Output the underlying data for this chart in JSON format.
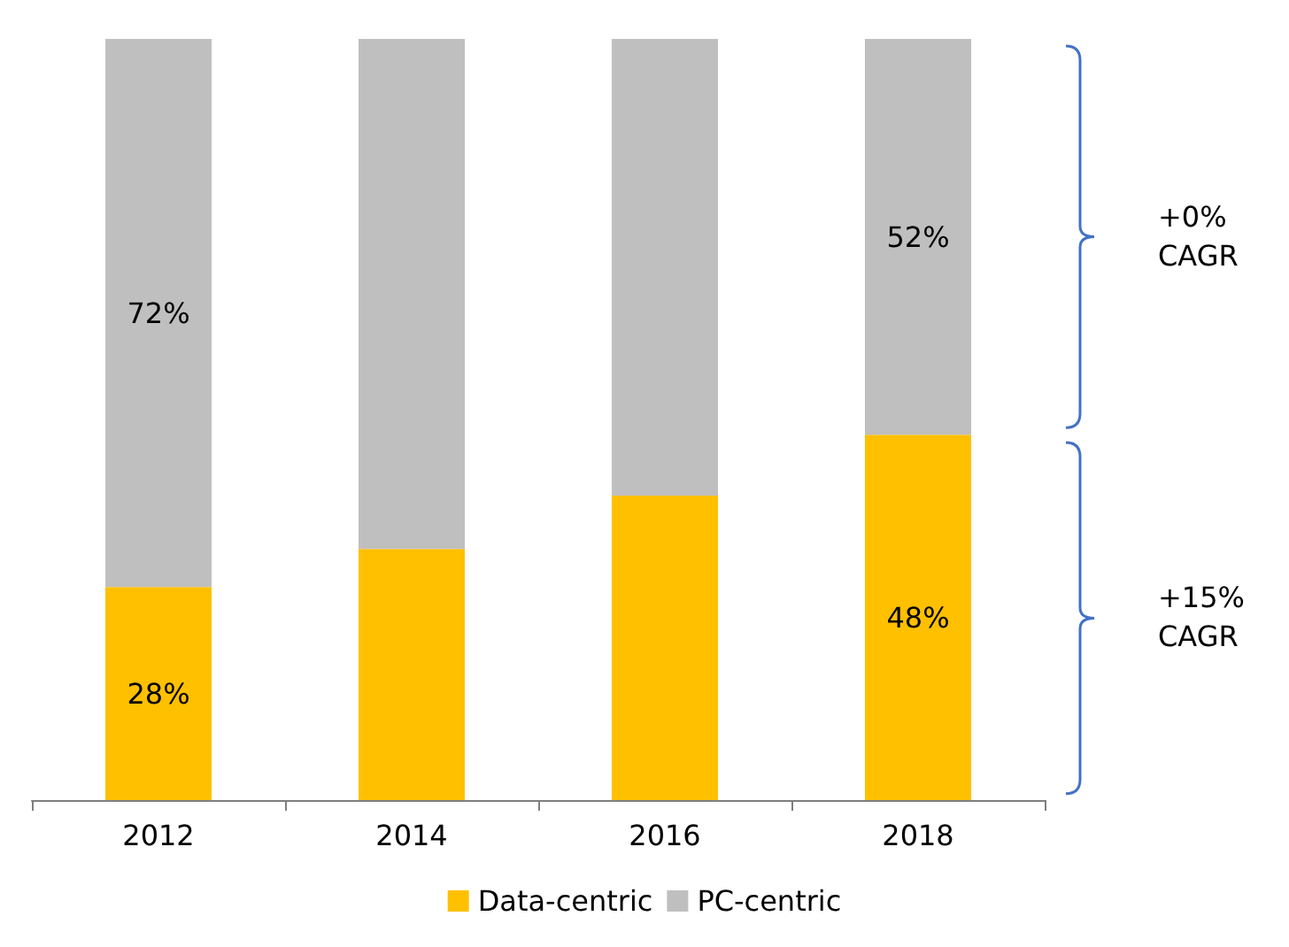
{
  "chart_data": {
    "type": "bar",
    "stacked": true,
    "categories": [
      "2012",
      "2014",
      "2016",
      "2018"
    ],
    "series": [
      {
        "name": "Data-centric",
        "color": "#ffc000",
        "values": [
          28,
          33,
          40,
          48
        ],
        "value_labels": [
          "28%",
          null,
          null,
          "48%"
        ]
      },
      {
        "name": "PC-centric",
        "color": "#bfbfbf",
        "values": [
          72,
          67,
          60,
          52
        ],
        "value_labels": [
          "72%",
          null,
          null,
          "52%"
        ]
      }
    ],
    "annotations": [
      "+0% CAGR",
      "+15% CAGR"
    ],
    "legend": "bottom"
  }
}
